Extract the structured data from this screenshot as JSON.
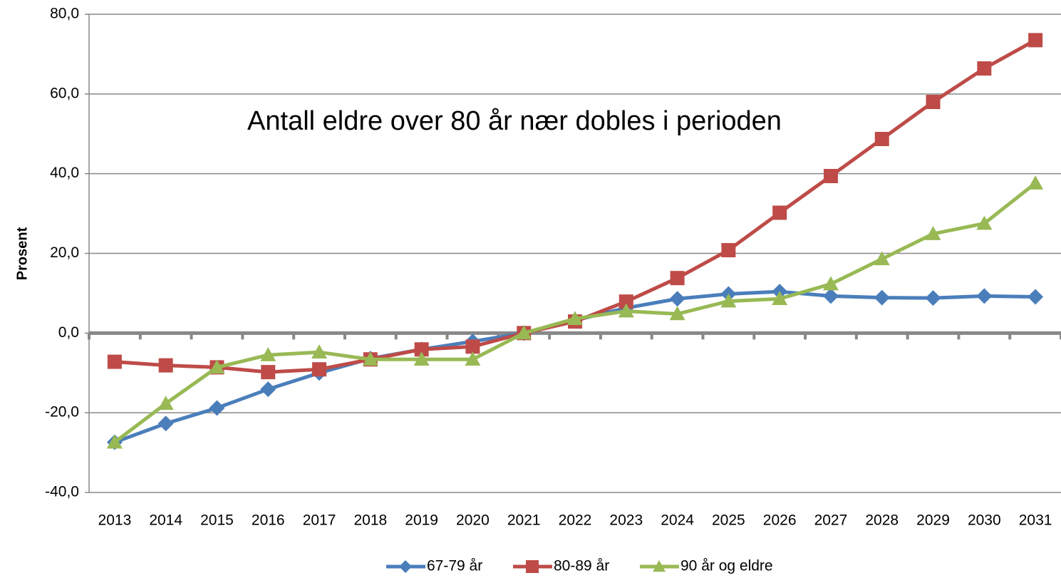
{
  "chart_data": {
    "type": "line",
    "annotation": "Antall eldre over 80 år nær dobles i perioden",
    "y_label": "Prosent",
    "categories": [
      "2013",
      "2014",
      "2015",
      "2016",
      "2017",
      "2018",
      "2019",
      "2020",
      "2021",
      "2022",
      "2023",
      "2024",
      "2025",
      "2026",
      "2027",
      "2028",
      "2029",
      "2030",
      "2031"
    ],
    "series": [
      {
        "name": "67-79 år",
        "color": "#4a7ebb",
        "marker": "diamond",
        "values": [
          -27.4,
          -22.7,
          -18.8,
          -14.1,
          -10.0,
          -6.4,
          -4.1,
          -2.1,
          0,
          3.2,
          6.3,
          8.6,
          9.8,
          10.4,
          9.3,
          8.9,
          8.8,
          9.3,
          9.1
        ]
      },
      {
        "name": "80-89 år",
        "color": "#be4b48",
        "marker": "square",
        "values": [
          -7.2,
          -8.1,
          -8.6,
          -9.8,
          -9.1,
          -6.6,
          -4.1,
          -3.4,
          0,
          2.9,
          7.9,
          13.8,
          20.8,
          30.2,
          39.4,
          48.7,
          58.0,
          66.4,
          73.5
        ]
      },
      {
        "name": "90 år og eldre",
        "color": "#98b954",
        "marker": "triangle",
        "values": [
          -27.4,
          -17.7,
          -8.6,
          -5.5,
          -4.8,
          -6.6,
          -6.6,
          -6.6,
          0,
          3.6,
          5.5,
          4.8,
          8.0,
          8.6,
          12.3,
          18.6,
          24.9,
          27.5,
          37.6
        ]
      }
    ],
    "ylim": [
      -40,
      80
    ],
    "yticks": [
      {
        "value": -40,
        "label": "-40,0"
      },
      {
        "value": -20,
        "label": "-20,0"
      },
      {
        "value": 0,
        "label": "0,0"
      },
      {
        "value": 20,
        "label": "20,0"
      },
      {
        "value": 40,
        "label": "40,0"
      },
      {
        "value": 60,
        "label": "60,0"
      },
      {
        "value": 80,
        "label": "80,0"
      }
    ],
    "grid": true,
    "legend": "bottom"
  }
}
